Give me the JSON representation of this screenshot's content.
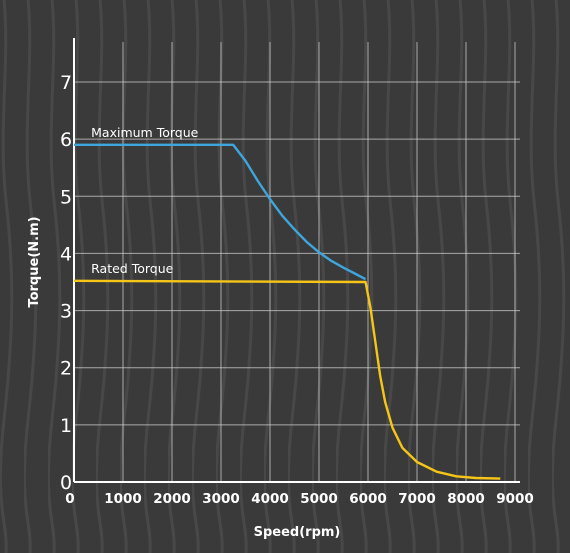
{
  "chart_data": {
    "type": "line",
    "title": "",
    "xlabel": "Speed(rpm)",
    "ylabel": "Torque(N.m)",
    "xlim": [
      0,
      9000
    ],
    "ylim": [
      0,
      7.8
    ],
    "x_ticks": [
      0,
      1000,
      2000,
      3000,
      4000,
      5000,
      6000,
      7000,
      8000,
      9000
    ],
    "y_ticks": [
      0,
      1,
      2,
      3,
      4,
      5,
      6,
      7
    ],
    "grid": true,
    "legend": "none",
    "series": [
      {
        "name": "Maximum Torque",
        "color": "#3ea6dc",
        "points": [
          [
            0,
            5.9
          ],
          [
            3250,
            5.9
          ],
          [
            3500,
            5.62
          ],
          [
            3750,
            5.27
          ],
          [
            4000,
            4.95
          ],
          [
            4250,
            4.66
          ],
          [
            4500,
            4.42
          ],
          [
            4750,
            4.2
          ],
          [
            5000,
            4.02
          ],
          [
            5250,
            3.87
          ],
          [
            5500,
            3.75
          ],
          [
            5750,
            3.64
          ],
          [
            5950,
            3.55
          ]
        ]
      },
      {
        "name": "Rated Torque",
        "color": "#f5c518",
        "points": [
          [
            0,
            3.52
          ],
          [
            5950,
            3.5
          ],
          [
            6050,
            3.05
          ],
          [
            6150,
            2.45
          ],
          [
            6250,
            1.85
          ],
          [
            6350,
            1.4
          ],
          [
            6500,
            0.95
          ],
          [
            6700,
            0.6
          ],
          [
            7000,
            0.35
          ],
          [
            7400,
            0.18
          ],
          [
            7800,
            0.1
          ],
          [
            8200,
            0.07
          ],
          [
            8700,
            0.06
          ]
        ]
      }
    ]
  }
}
